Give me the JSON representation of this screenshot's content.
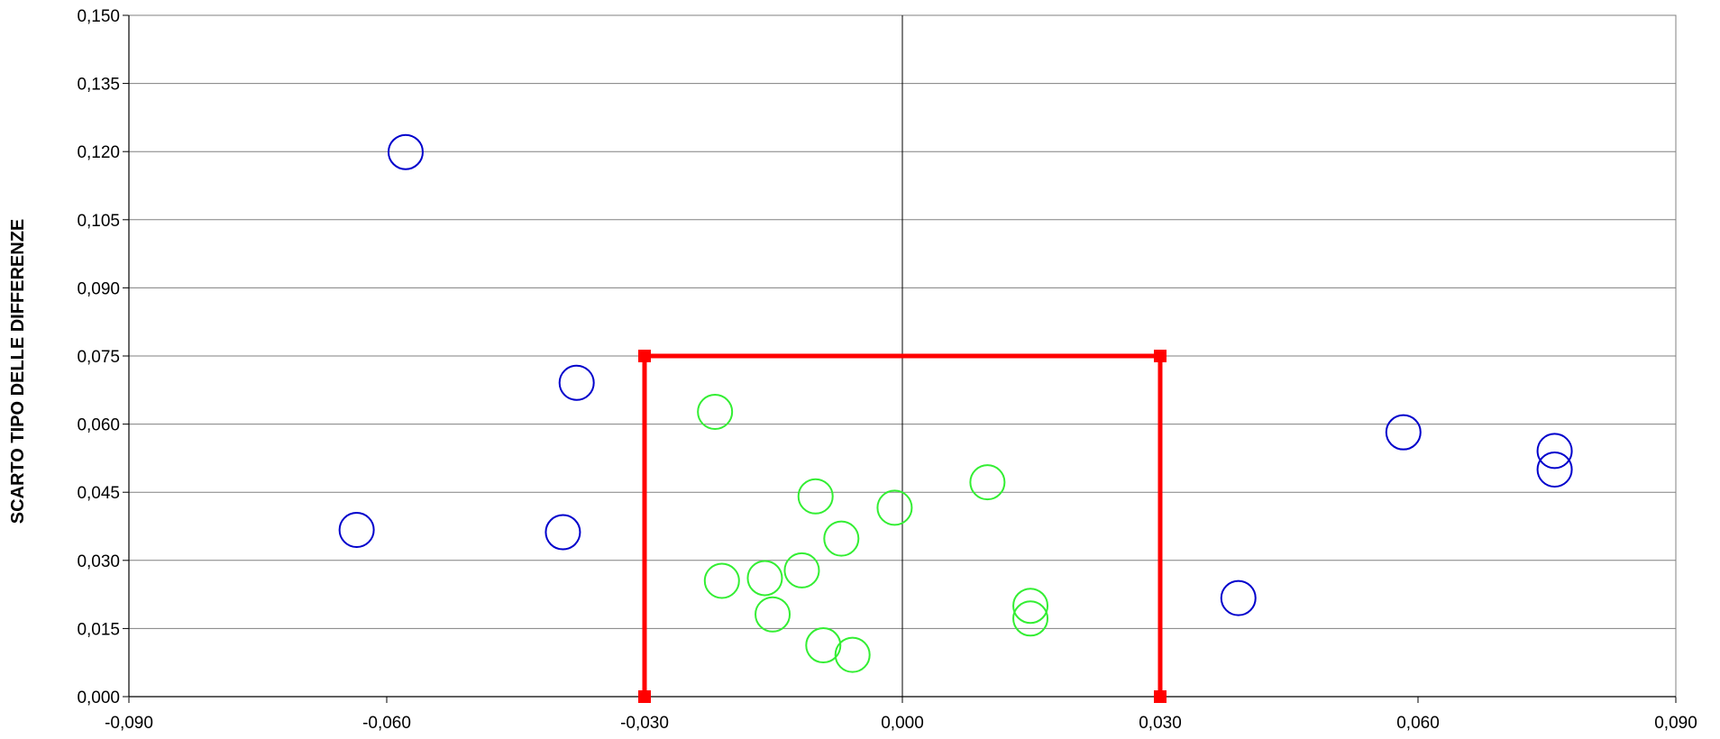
{
  "chart_data": {
    "type": "scatter",
    "title": "",
    "xlabel": "",
    "ylabel": "SCARTO TIPO DELLE DIFFERENZE",
    "xlim": [
      -0.09,
      0.09
    ],
    "ylim": [
      0.0,
      0.15
    ],
    "x_ticks": [
      "-0,090",
      "-0,060",
      "-0,030",
      "0,000",
      "0,030",
      "0,060",
      "0,090"
    ],
    "y_ticks": [
      "0,000",
      "0,015",
      "0,030",
      "0,045",
      "0,060",
      "0,075",
      "0,090",
      "0,105",
      "0,120",
      "0,135",
      "0,150"
    ],
    "grid": "horizontal",
    "legend": "none",
    "colors": {
      "outside": "#0000cc",
      "inside": "#33ee33",
      "limit": "#ff0000",
      "grid": "#808080"
    },
    "series": [
      {
        "marker": "open-circle",
        "color": "#0000cc",
        "points": [
          [
            -0.0578,
            0.1199
          ],
          [
            -0.0379,
            0.0691
          ],
          [
            -0.0635,
            0.0367
          ],
          [
            -0.0395,
            0.0362
          ],
          [
            0.0391,
            0.0217
          ],
          [
            0.0583,
            0.0582
          ],
          [
            0.0759,
            0.0541
          ],
          [
            0.0759,
            0.05
          ]
        ]
      },
      {
        "marker": "open-circle",
        "color": "#33ee33",
        "points": [
          [
            -0.0218,
            0.0627
          ],
          [
            -0.0101,
            0.0441
          ],
          [
            -0.0009,
            0.0416
          ],
          [
            0.0099,
            0.0472
          ],
          [
            -0.0071,
            0.0348
          ],
          [
            -0.0117,
            0.0278
          ],
          [
            -0.016,
            0.0261
          ],
          [
            -0.021,
            0.0255
          ],
          [
            -0.0151,
            0.0181
          ],
          [
            0.0149,
            0.02
          ],
          [
            0.0149,
            0.0172
          ],
          [
            -0.0092,
            0.0113
          ],
          [
            -0.0058,
            0.0092
          ]
        ]
      },
      {
        "type": "line",
        "marker": "square",
        "color": "#ff0000",
        "points": [
          [
            -0.03,
            0.0
          ],
          [
            -0.03,
            0.075
          ],
          [
            0.03,
            0.075
          ],
          [
            0.03,
            0.0
          ]
        ]
      }
    ]
  }
}
